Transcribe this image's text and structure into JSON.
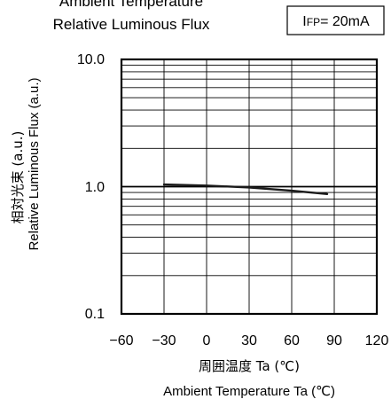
{
  "chart_data": {
    "type": "line",
    "title_lines": [
      "Ambient Temperature",
      "Relative Luminous Flux"
    ],
    "condition": {
      "symbol_main": "I",
      "symbol_sub": "FP",
      "rest": "= 20mA"
    },
    "xlabel_jp": "周囲温度 Ta (℃)",
    "xlabel_en": "Ambient Temperature Ta (℃)",
    "ylabel_jp": "相対光束 (a.u.)",
    "ylabel_en": "Relative Luminous Flux (a.u.)",
    "xlim": [
      -60,
      120
    ],
    "ylim": [
      0.1,
      10
    ],
    "yscale": "log",
    "x_ticks": [
      -60,
      -30,
      0,
      30,
      60,
      90,
      120
    ],
    "x_tick_labels": [
      "−60",
      "−30",
      "0",
      "30",
      "60",
      "90",
      "120"
    ],
    "y_major_ticks": [
      0.1,
      1,
      10
    ],
    "y_tick_labels": [
      "0.1",
      "1.0",
      "10.0"
    ],
    "grid": true,
    "series": [
      {
        "x": [
          -30,
          0,
          30,
          60,
          85
        ],
        "y": [
          1.04,
          1.02,
          0.985,
          0.93,
          0.875
        ]
      }
    ]
  }
}
